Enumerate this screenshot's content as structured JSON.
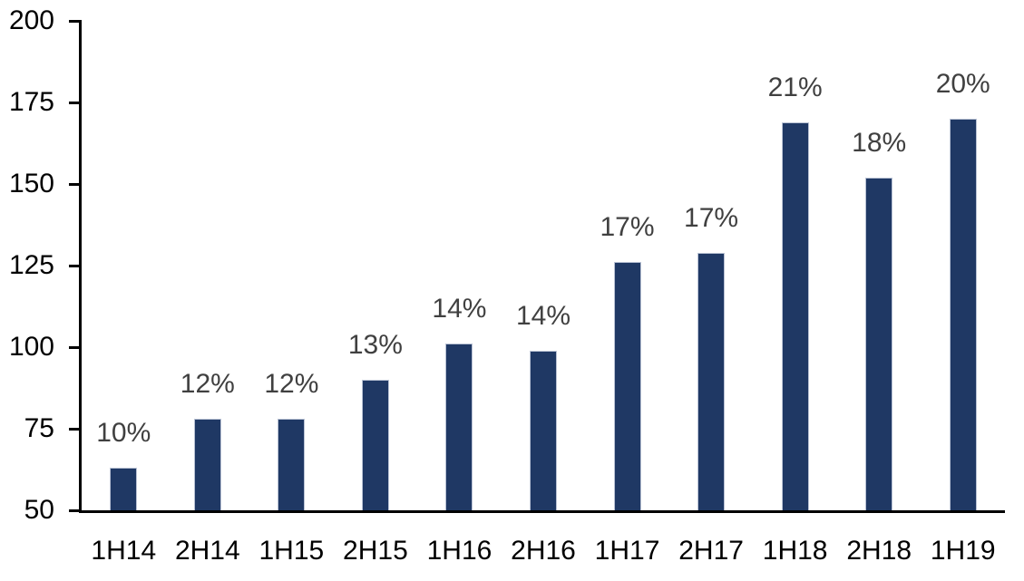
{
  "chart_data": {
    "type": "bar",
    "categories": [
      "1H14",
      "2H14",
      "1H15",
      "2H15",
      "1H16",
      "2H16",
      "1H17",
      "2H17",
      "1H18",
      "2H18",
      "1H19"
    ],
    "values": [
      63,
      78,
      78,
      90,
      101,
      99,
      126,
      129,
      169,
      152,
      170
    ],
    "data_labels": [
      "10%",
      "12%",
      "12%",
      "13%",
      "14%",
      "14%",
      "17%",
      "17%",
      "21%",
      "18%",
      "20%"
    ],
    "title": "",
    "xlabel": "",
    "ylabel": "",
    "ylim": [
      50,
      200
    ],
    "yticks": [
      50,
      75,
      100,
      125,
      150,
      175,
      200
    ],
    "grid": false,
    "legend": false,
    "bar_color": "#1F3864",
    "bar_border_color": "#B9C2D4",
    "data_label_color": "#404040",
    "axis_color": "#000000",
    "tick_label_color": "#000000"
  }
}
